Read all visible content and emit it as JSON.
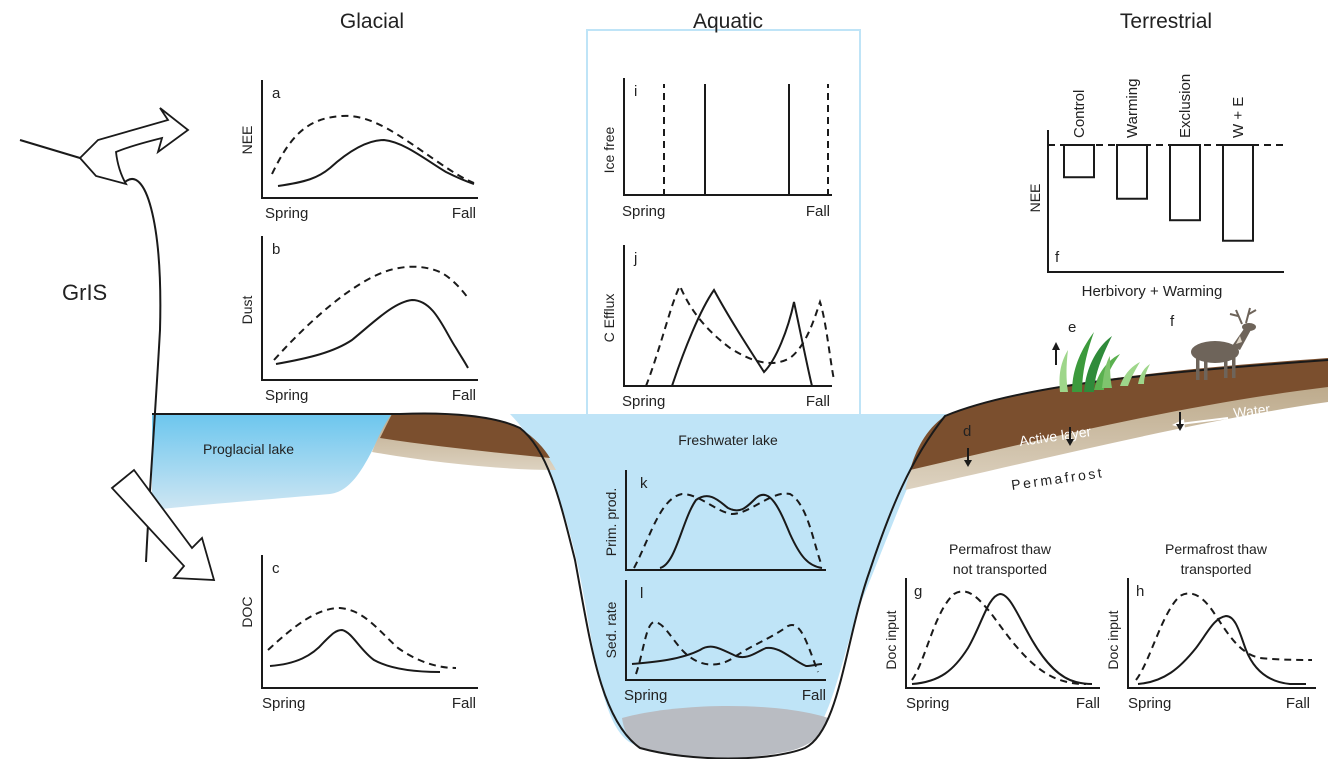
{
  "headers": {
    "glacial": "Glacial",
    "aquatic": "Aquatic",
    "terrestrial": "Terrestrial"
  },
  "grls_label": "GrIS",
  "landscape": {
    "proglacial_lake": "Proglacial lake",
    "freshwater_lake": "Freshwater lake",
    "active_layer": "Active layer",
    "permafrost": "Permafrost",
    "water": "Water",
    "markers": {
      "d": "d",
      "e": "e",
      "f": "f"
    }
  },
  "panels": {
    "a": {
      "letter": "a",
      "ylabel": "NEE",
      "x_start": "Spring",
      "x_end": "Fall"
    },
    "b": {
      "letter": "b",
      "ylabel": "Dust",
      "x_start": "Spring",
      "x_end": "Fall"
    },
    "c": {
      "letter": "c",
      "ylabel": "DOC",
      "x_start": "Spring",
      "x_end": "Fall"
    },
    "i": {
      "letter": "i",
      "ylabel": "Ice free",
      "x_start": "Spring",
      "x_end": "Fall"
    },
    "j": {
      "letter": "j",
      "ylabel": "C Efflux",
      "x_start": "Spring",
      "x_end": "Fall"
    },
    "k": {
      "letter": "k",
      "ylabel": "Prim. prod."
    },
    "l": {
      "letter": "l",
      "ylabel": "Sed. rate",
      "x_start": "Spring",
      "x_end": "Fall"
    },
    "g": {
      "letter": "g",
      "title_line1": "Permafrost thaw",
      "title_line2": "not transported",
      "ylabel": "Doc input",
      "x_start": "Spring",
      "x_end": "Fall"
    },
    "h": {
      "letter": "h",
      "title_line1": "Permafrost thaw",
      "title_line2": "transported",
      "ylabel": "Doc input",
      "x_start": "Spring",
      "x_end": "Fall"
    }
  },
  "chart_f": {
    "type": "bar",
    "letter": "f",
    "ylabel": "NEE",
    "xlabel": "Herbivory + Warming",
    "categories": [
      "Control",
      "Warming",
      "Exclusion",
      "W + E"
    ],
    "values": [
      -0.33,
      -0.55,
      -0.77,
      -0.98
    ],
    "ylim": [
      -1.3,
      0
    ]
  },
  "colors": {
    "soil": "#7b4f2e",
    "permafrost": "#c9b89c",
    "lake": "#bfe4f7",
    "proglacial": "#7fcdee",
    "sediment": "#b9bcc2",
    "vegetation": "#3c9a3c",
    "caribou": "#6e645a"
  }
}
